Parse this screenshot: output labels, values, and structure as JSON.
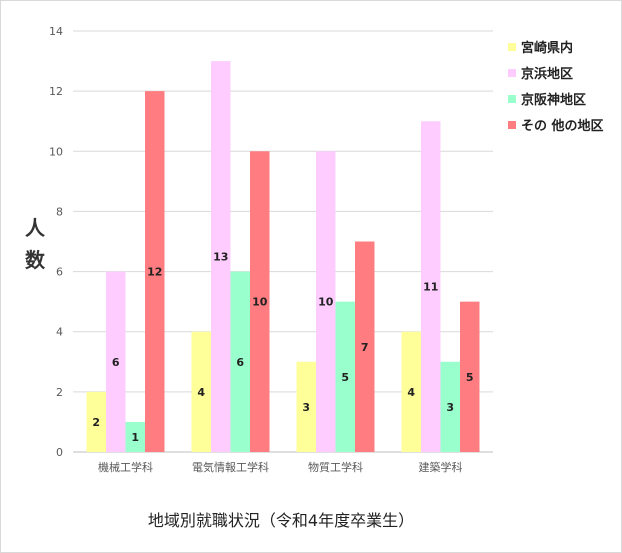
{
  "chart_data": {
    "type": "bar",
    "title": "",
    "caption": "地域別就職状況（令和4年度卒業生）",
    "ylabel_chars": [
      "人",
      "数"
    ],
    "xlabel": "",
    "ylim": [
      0,
      14
    ],
    "yticks": [
      0,
      2,
      4,
      6,
      8,
      10,
      12,
      14
    ],
    "grid": true,
    "legend_position": "right",
    "categories": [
      "機械工学科",
      "電気情報工学科",
      "物質工学科",
      "建築学科"
    ],
    "series": [
      {
        "name": "宮崎県内",
        "color": "#ffff99",
        "values": [
          2,
          4,
          3,
          4
        ]
      },
      {
        "name": "京浜地区",
        "color": "#ffccff",
        "values": [
          6,
          13,
          10,
          11
        ]
      },
      {
        "name": "京阪神地区",
        "color": "#99ffcc",
        "values": [
          1,
          6,
          5,
          3
        ]
      },
      {
        "name": "その 他の地区",
        "color": "#ff7c80",
        "values": [
          12,
          10,
          7,
          5
        ]
      }
    ]
  }
}
